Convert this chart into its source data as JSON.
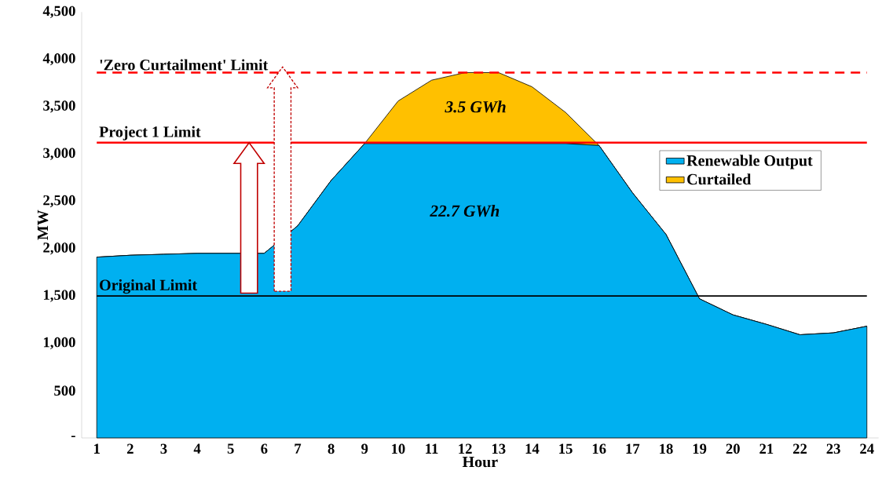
{
  "chart_data": {
    "type": "area",
    "stacked": true,
    "xlabel": "Hour",
    "ylabel": "MW",
    "categories": [
      "1",
      "2",
      "3",
      "4",
      "5",
      "6",
      "7",
      "8",
      "9",
      "10",
      "11",
      "12",
      "13",
      "14",
      "15",
      "16",
      "17",
      "18",
      "19",
      "20",
      "21",
      "22",
      "23",
      "24"
    ],
    "series": [
      {
        "name": "Renewable Output",
        "color": "#00b0f0",
        "values": [
          1910,
          1930,
          1940,
          1950,
          1950,
          1950,
          2240,
          2720,
          3110,
          3110,
          3110,
          3110,
          3110,
          3110,
          3110,
          3090,
          2590,
          2150,
          1470,
          1300,
          1200,
          1090,
          1110,
          1180
        ]
      },
      {
        "name": "Curtailed",
        "color": "#ffc000",
        "values": [
          0,
          0,
          0,
          0,
          0,
          0,
          0,
          0,
          0,
          450,
          670,
          750,
          750,
          600,
          330,
          0,
          0,
          0,
          0,
          0,
          0,
          0,
          0,
          0
        ]
      }
    ],
    "ylim": [
      0,
      4500
    ],
    "yticks": [
      {
        "value": 0,
        "label": "-"
      },
      500,
      {
        "value": 1000,
        "label": "1,000"
      },
      {
        "value": 1500,
        "label": "1,500"
      },
      {
        "value": 2000,
        "label": "2,000"
      },
      {
        "value": 2500,
        "label": "2,500"
      },
      {
        "value": 3000,
        "label": "3,000"
      },
      {
        "value": 3500,
        "label": "3,500"
      },
      {
        "value": 4000,
        "label": "4,000"
      },
      {
        "value": 4500,
        "label": "4,500"
      }
    ],
    "ref_lines": [
      {
        "axis": "y",
        "value": 3860,
        "label": "'Zero Curtailment' Limit",
        "color": "#ff0000",
        "line_style": "dashed"
      },
      {
        "axis": "y",
        "value": 3120,
        "label": "Project 1 Limit",
        "color": "#ff0000",
        "line_style": "solid"
      },
      {
        "axis": "y",
        "value": 1500,
        "label": "Original Limit",
        "color": "#000000",
        "line_style": "solid"
      }
    ],
    "annotations": [
      "3.5 GWh",
      "22.7 GWh"
    ],
    "legend": "right",
    "grid": false,
    "marker": "none"
  }
}
